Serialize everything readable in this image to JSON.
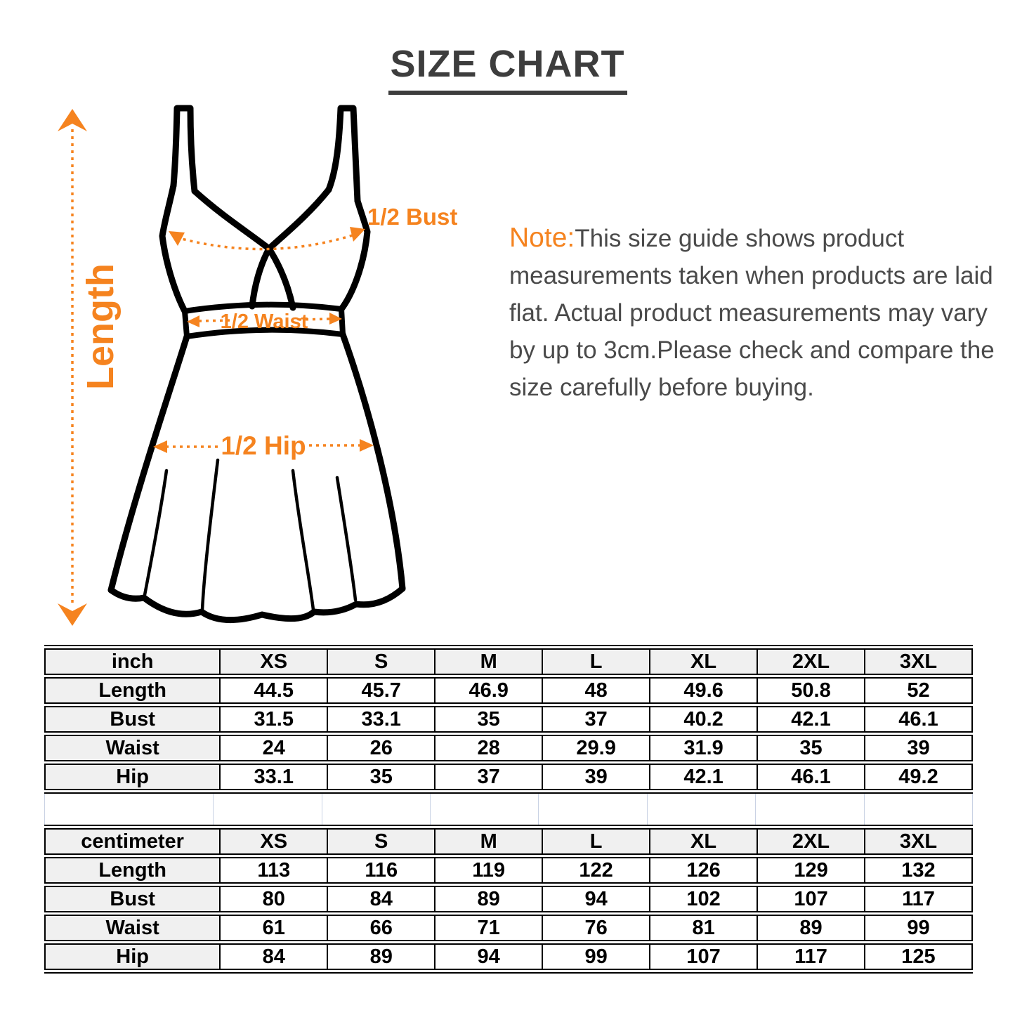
{
  "page": {
    "title": "SIZE CHART"
  },
  "diagram": {
    "length_label": "Length",
    "bust_label": "1/2 Bust",
    "waist_label": "1/2 Waist",
    "hip_label": "1/2 Hip",
    "accent_color": "#F5831F",
    "line_color": "#000000"
  },
  "note": {
    "label": "Note:",
    "text": "This size guide shows product measurements taken when products are laid flat. Actual product measurements may vary by up to 3cm.Please check and compare the size carefully before buying."
  },
  "tables": [
    {
      "unit": "inch",
      "sizes": [
        "XS",
        "S",
        "M",
        "L",
        "XL",
        "2XL",
        "3XL"
      ],
      "rows": [
        {
          "label": "Length",
          "values": [
            "44.5",
            "45.7",
            "46.9",
            "48",
            "49.6",
            "50.8",
            "52"
          ]
        },
        {
          "label": "Bust",
          "values": [
            "31.5",
            "33.1",
            "35",
            "37",
            "40.2",
            "42.1",
            "46.1"
          ]
        },
        {
          "label": "Waist",
          "values": [
            "24",
            "26",
            "28",
            "29.9",
            "31.9",
            "35",
            "39"
          ]
        },
        {
          "label": "Hip",
          "values": [
            "33.1",
            "35",
            "37",
            "39",
            "42.1",
            "46.1",
            "49.2"
          ]
        }
      ]
    },
    {
      "unit": "centimeter",
      "sizes": [
        "XS",
        "S",
        "M",
        "L",
        "XL",
        "2XL",
        "3XL"
      ],
      "rows": [
        {
          "label": "Length",
          "values": [
            "113",
            "116",
            "119",
            "122",
            "126",
            "129",
            "132"
          ]
        },
        {
          "label": "Bust",
          "values": [
            "80",
            "84",
            "89",
            "94",
            "102",
            "107",
            "117"
          ]
        },
        {
          "label": "Waist",
          "values": [
            "61",
            "66",
            "71",
            "76",
            "81",
            "89",
            "99"
          ]
        },
        {
          "label": "Hip",
          "values": [
            "84",
            "89",
            "94",
            "99",
            "107",
            "117",
            "125"
          ]
        }
      ]
    }
  ]
}
